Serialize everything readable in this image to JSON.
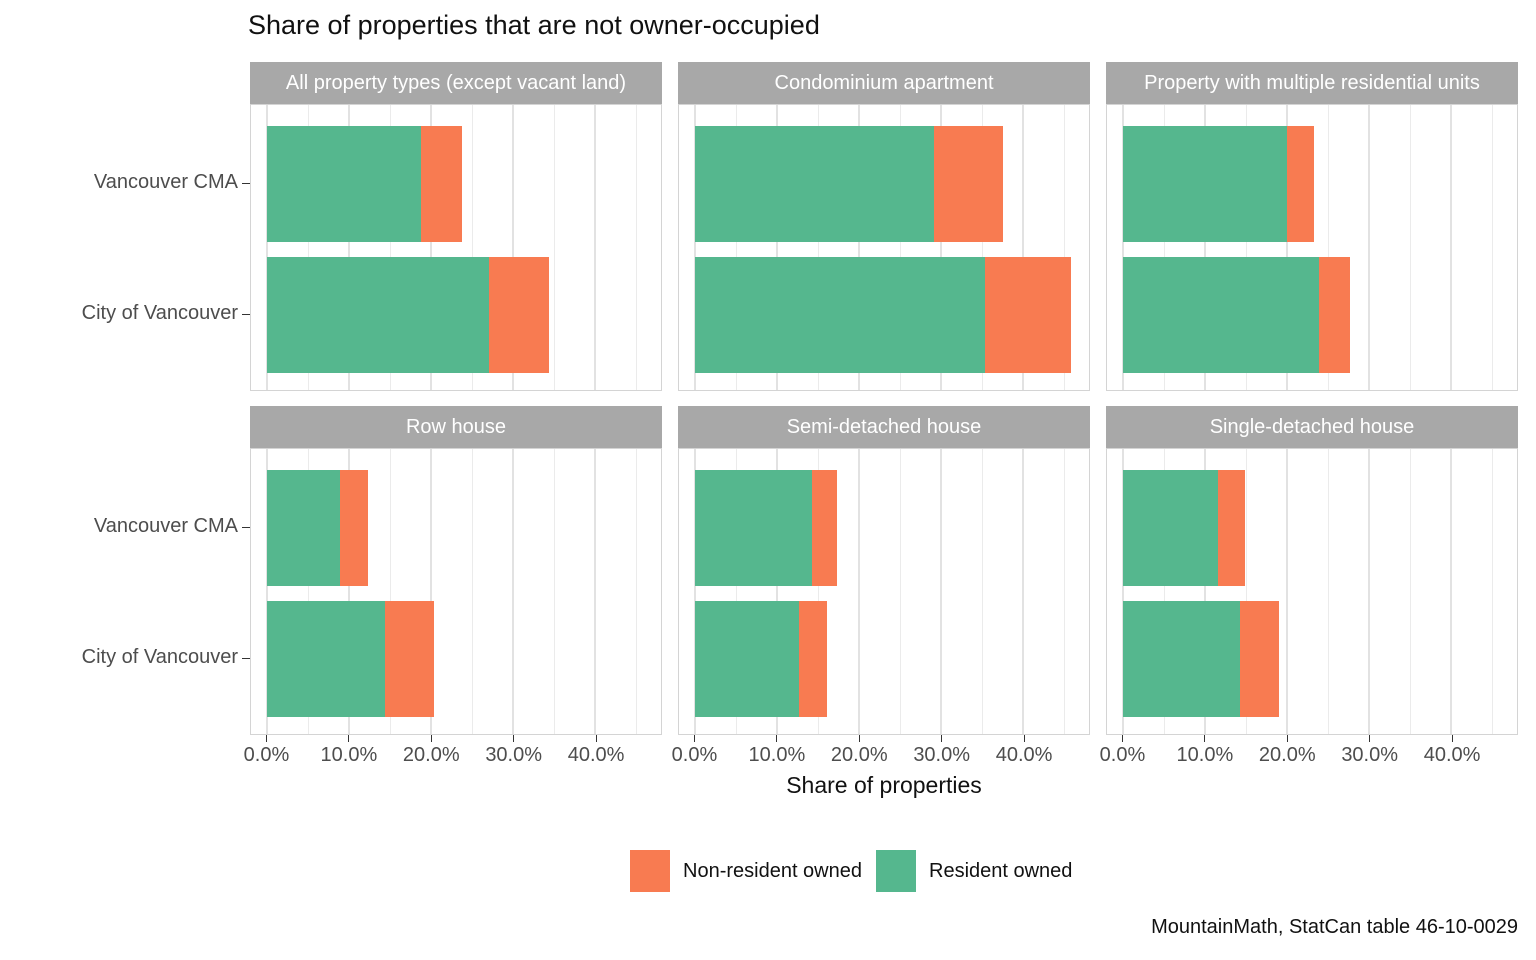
{
  "title": "Share of properties that are not owner-occupied",
  "x_axis": {
    "title": "Share of properties",
    "tick_labels": [
      "0.0%",
      "10.0%",
      "20.0%",
      "30.0%",
      "40.0%"
    ],
    "tick_values": [
      0,
      10,
      20,
      30,
      40
    ],
    "minor_tick_values": [
      5,
      15,
      25,
      35,
      45
    ],
    "domain": [
      -2,
      48
    ]
  },
  "y_axis": {
    "categories": [
      "Vancouver CMA",
      "City of Vancouver"
    ]
  },
  "legend": {
    "items": [
      {
        "label": "Non-resident owned",
        "color": "#f87b51"
      },
      {
        "label": "Resident owned",
        "color": "#55b78e"
      }
    ]
  },
  "caption": "MountainMath, StatCan table 46-10-0029",
  "colors": {
    "resident_owned": "#55b78e",
    "non_resident_owned": "#f87b51",
    "strip_background": "#a8a8a8",
    "strip_text": "#ffffff",
    "gridline_major": "#e2e2e2",
    "gridline_minor": "#ebebeb",
    "panel_border": "#d4d4d4",
    "axis_text": "#4d4d4d"
  },
  "chart_data": {
    "type": "bar",
    "orientation": "horizontal",
    "stacked": true,
    "title": "Share of properties that are not owner-occupied",
    "xlabel": "Share of properties",
    "ylabel": "",
    "xlim_percent": [
      0,
      48
    ],
    "grid": true,
    "legend_position": "bottom",
    "units": "percent of properties",
    "series_order": [
      "Resident owned",
      "Non-resident owned"
    ],
    "facets": [
      {
        "title": "All property types (except vacant land)",
        "rows": [
          {
            "category": "Vancouver CMA",
            "resident_owned": 18.7,
            "non_resident_owned": 5.0,
            "total": 23.7
          },
          {
            "category": "City of Vancouver",
            "resident_owned": 27.0,
            "non_resident_owned": 7.4,
            "total": 34.4
          }
        ]
      },
      {
        "title": "Condominium apartment",
        "rows": [
          {
            "category": "Vancouver CMA",
            "resident_owned": 29.1,
            "non_resident_owned": 8.4,
            "total": 37.5
          },
          {
            "category": "City of Vancouver",
            "resident_owned": 35.3,
            "non_resident_owned": 10.5,
            "total": 45.8
          }
        ]
      },
      {
        "title": "Property with multiple residential units",
        "rows": [
          {
            "category": "Vancouver CMA",
            "resident_owned": 20.0,
            "non_resident_owned": 3.2,
            "total": 23.2
          },
          {
            "category": "City of Vancouver",
            "resident_owned": 23.8,
            "non_resident_owned": 3.8,
            "total": 27.6
          }
        ]
      },
      {
        "title": "Row house",
        "rows": [
          {
            "category": "Vancouver CMA",
            "resident_owned": 8.8,
            "non_resident_owned": 3.5,
            "total": 12.3
          },
          {
            "category": "City of Vancouver",
            "resident_owned": 14.4,
            "non_resident_owned": 5.9,
            "total": 20.3
          }
        ]
      },
      {
        "title": "Semi-detached house",
        "rows": [
          {
            "category": "Vancouver CMA",
            "resident_owned": 14.2,
            "non_resident_owned": 3.1,
            "total": 17.3
          },
          {
            "category": "City of Vancouver",
            "resident_owned": 12.6,
            "non_resident_owned": 3.4,
            "total": 16.0
          }
        ]
      },
      {
        "title": "Single-detached house",
        "rows": [
          {
            "category": "Vancouver CMA",
            "resident_owned": 11.5,
            "non_resident_owned": 3.3,
            "total": 14.8
          },
          {
            "category": "City of Vancouver",
            "resident_owned": 14.2,
            "non_resident_owned": 4.8,
            "total": 19.0
          }
        ]
      }
    ]
  }
}
